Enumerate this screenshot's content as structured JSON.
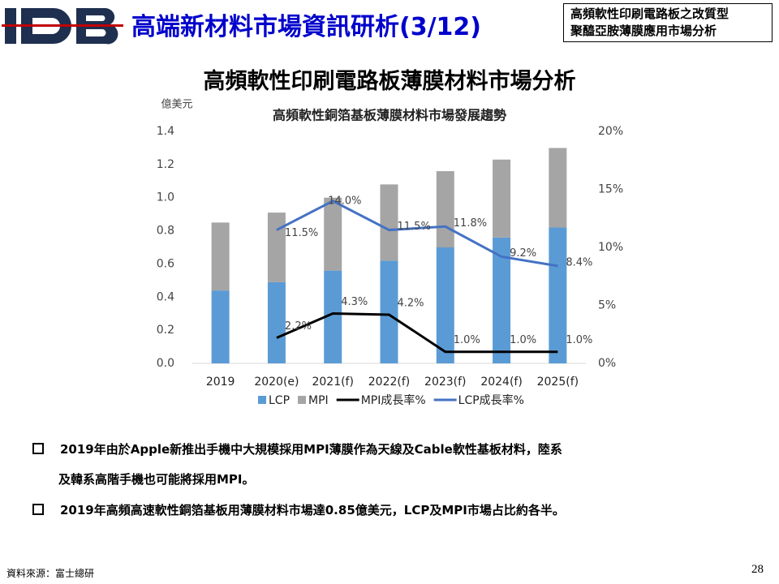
{
  "header": {
    "title": "高端新材料市場資訊研析(3/12)",
    "box_lines": [
      "高頻軟性印刷電路板之改質型",
      "聚醯亞胺薄膜應用市場分析"
    ]
  },
  "heading": "高頻軟性印刷電路板薄膜材料市場分析",
  "chart_data": {
    "type": "bar",
    "stacked": true,
    "title": "高頻軟性銅箔基板薄膜材料市場發展趨勢",
    "y_label": "億美元",
    "categories": [
      "2019",
      "2020(e)",
      "2021(f)",
      "2022(f)",
      "2023(f)",
      "2024(f)",
      "2025(f)"
    ],
    "series": [
      {
        "name": "LCP",
        "color": "#5b9bd5",
        "values": [
          0.44,
          0.49,
          0.56,
          0.62,
          0.7,
          0.76,
          0.82
        ]
      },
      {
        "name": "MPI",
        "color": "#a5a5a5",
        "values": [
          0.41,
          0.42,
          0.44,
          0.46,
          0.46,
          0.47,
          0.48
        ]
      },
      {
        "name": "MPI成長率%",
        "color": "#000000",
        "type": "line",
        "axis": "y2",
        "values": [
          null,
          2.2,
          4.3,
          4.2,
          1.0,
          1.0,
          1.0
        ],
        "value_labels": [
          null,
          "2.2%",
          "4.3%",
          "4.2%",
          "1.0%",
          "1.0%",
          "1.0%"
        ]
      },
      {
        "name": "LCP成長率%",
        "color": "#4472c4",
        "type": "line",
        "axis": "y2",
        "values": [
          null,
          11.5,
          14.0,
          11.5,
          11.8,
          9.2,
          8.4
        ],
        "value_labels": [
          null,
          "11.5%",
          "14.0%",
          "11.5%",
          "11.8%",
          "9.2%",
          "8.4%"
        ]
      }
    ],
    "ylim": [
      0,
      1.4
    ],
    "yticks": [
      {
        "value": 0,
        "label": "0.0"
      },
      0.2,
      0.4,
      0.6,
      0.8,
      {
        "value": 1,
        "label": "1.0"
      },
      1.2,
      1.4
    ],
    "y2lim": [
      0,
      20
    ],
    "y2ticks": [
      {
        "value": 0,
        "label": "0%"
      },
      {
        "value": 5,
        "label": "5%"
      },
      {
        "value": 10,
        "label": "10%"
      },
      {
        "value": 15,
        "label": "15%"
      },
      {
        "value": 20,
        "label": "20%"
      }
    ],
    "legend": "bottom"
  },
  "bullets": [
    [
      "2019年由於Apple新推出手機中大規模採用MPI薄膜作為天線及Cable軟性基板材料，陸系",
      "及韓系高階手機也可能將採用MPI。"
    ],
    [
      "2019年高頻高速軟性銅箔基板用薄膜材料市場達0.85億美元，LCP及MPI市場占比約各半。"
    ]
  ],
  "source": "資料來源：富士總研",
  "page_number": "28"
}
